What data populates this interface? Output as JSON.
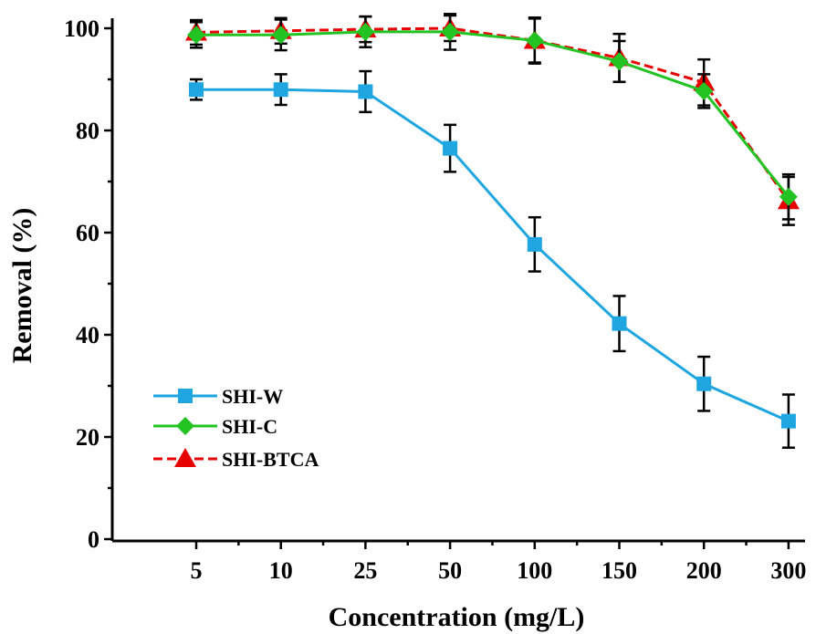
{
  "chart_data": {
    "type": "line",
    "categories": [
      "5",
      "10",
      "25",
      "50",
      "100",
      "150",
      "200",
      "300"
    ],
    "xlabel": "Concentration (mg/L)",
    "ylabel": "Removal (%)",
    "ylim": [
      0,
      100
    ],
    "yticks": [
      "0",
      "20",
      "40",
      "60",
      "80",
      "100"
    ],
    "legend_position": "bottom-left",
    "series": [
      {
        "name": "SHI-W",
        "color": "#1fa6e0",
        "marker": "square",
        "line": "solid",
        "values": [
          88.0,
          88.0,
          87.6,
          76.5,
          57.7,
          42.2,
          30.4,
          23.1
        ],
        "errors": [
          2.0,
          3.0,
          4.0,
          4.6,
          5.3,
          5.4,
          5.3,
          5.2
        ]
      },
      {
        "name": "SHI-C",
        "color": "#22c322",
        "marker": "diamond",
        "line": "solid",
        "values": [
          98.7,
          98.7,
          99.3,
          99.3,
          97.6,
          93.5,
          87.7,
          67.0
        ],
        "errors": [
          2.5,
          3.0,
          3.0,
          3.5,
          4.5,
          4.0,
          3.3,
          4.4
        ]
      },
      {
        "name": "SHI-BTCA",
        "color": "#e60000",
        "marker": "triangle",
        "line": "dashed",
        "values": [
          99.2,
          99.5,
          99.8,
          100.0,
          97.6,
          94.2,
          89.4,
          66.2
        ],
        "errors": [
          2.4,
          2.5,
          2.5,
          2.5,
          4.3,
          4.7,
          4.5,
          4.7
        ]
      }
    ]
  }
}
